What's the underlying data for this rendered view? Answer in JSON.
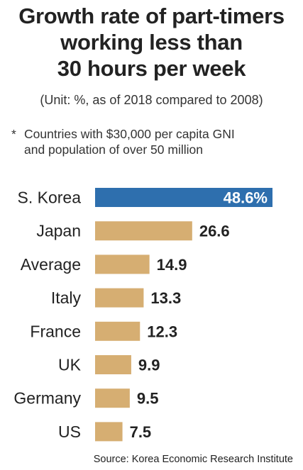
{
  "header": {
    "title_lines": [
      "Growth rate of part-timers",
      "working less than",
      "30 hours per week"
    ],
    "unit": "(Unit: %, as of 2018 compared to 2008)",
    "note_star": "*",
    "note_lines": [
      "Countries with $30,000 per capita GNI",
      "and population of over 50 million"
    ]
  },
  "source": "Source: Korea Economic Research Institute",
  "colors": {
    "highlight": "#2e6fae",
    "bar": "#d6ae72",
    "label": "#222222",
    "highlight_label": "#ffffff"
  },
  "chart_data": {
    "type": "bar",
    "orientation": "horizontal",
    "categories": [
      "S. Korea",
      "Japan",
      "Average",
      "Italy",
      "France",
      "UK",
      "Germany",
      "US"
    ],
    "values": [
      48.6,
      26.6,
      14.9,
      13.3,
      12.3,
      9.9,
      9.5,
      7.5
    ],
    "value_labels": [
      "48.6%",
      "26.6",
      "14.9",
      "13.3",
      "12.3",
      "9.9",
      "9.5",
      "7.5"
    ],
    "highlight_index": 0,
    "xlim": [
      0,
      48.6
    ],
    "grid": false,
    "legend": "none"
  }
}
